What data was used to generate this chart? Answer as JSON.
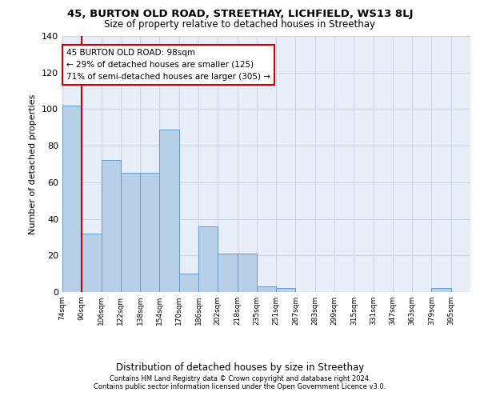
{
  "title1": "45, BURTON OLD ROAD, STREETHAY, LICHFIELD, WS13 8LJ",
  "title2": "Size of property relative to detached houses in Streethay",
  "xlabel": "Distribution of detached houses by size in Streethay",
  "ylabel": "Number of detached properties",
  "footer1": "Contains HM Land Registry data © Crown copyright and database right 2024.",
  "footer2": "Contains public sector information licensed under the Open Government Licence v3.0.",
  "bin_labels": [
    "74sqm",
    "90sqm",
    "106sqm",
    "122sqm",
    "138sqm",
    "154sqm",
    "170sqm",
    "186sqm",
    "202sqm",
    "218sqm",
    "235sqm",
    "251sqm",
    "267sqm",
    "283sqm",
    "299sqm",
    "315sqm",
    "331sqm",
    "347sqm",
    "363sqm",
    "379sqm",
    "395sqm"
  ],
  "bar_values": [
    102,
    32,
    72,
    65,
    65,
    89,
    10,
    36,
    21,
    21,
    3,
    2,
    0,
    0,
    0,
    0,
    0,
    0,
    0,
    2,
    0
  ],
  "bar_color": "#b8cfe8",
  "bar_edge_color": "#6699cc",
  "annotation_line1": "45 BURTON OLD ROAD: 98sqm",
  "annotation_line2": "← 29% of detached houses are smaller (125)",
  "annotation_line3": "71% of semi-detached houses are larger (305) →",
  "annotation_box_facecolor": "#ffffff",
  "annotation_box_edgecolor": "#cc0000",
  "vline_color": "#cc0000",
  "vline_x": 1.0,
  "ylim_max": 140,
  "yticks": [
    0,
    20,
    40,
    60,
    80,
    100,
    120,
    140
  ],
  "grid_color": "#ccd5e8",
  "bg_color": "#e8eef8",
  "title1_fontsize": 9.5,
  "title2_fontsize": 8.5,
  "tick_fontsize": 6.5,
  "ytick_fontsize": 8,
  "ylabel_fontsize": 8,
  "xlabel_fontsize": 8.5,
  "annotation_fontsize": 7.5,
  "footer_fontsize": 6.0
}
